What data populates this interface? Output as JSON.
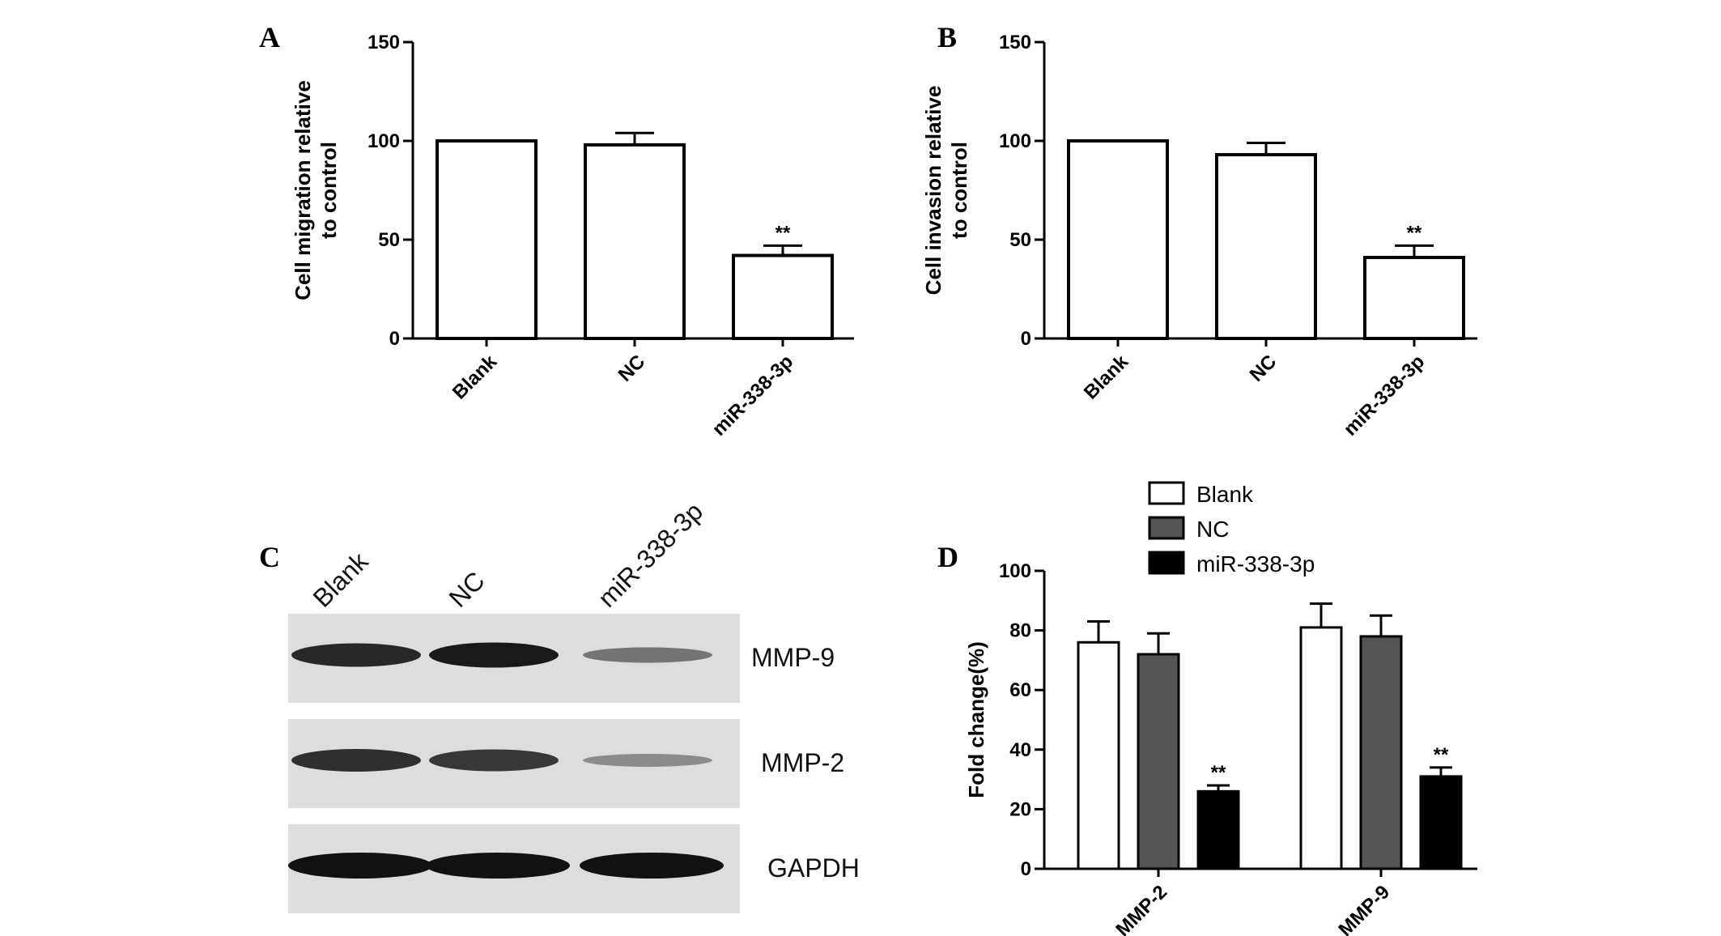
{
  "colors": {
    "axis": "#000000",
    "blank_fill": "#ffffff",
    "nc_fill": "#555555",
    "mir_fill": "#000000",
    "blot_bg": "#dddddd",
    "band": "#111111"
  },
  "panels": {
    "A": {
      "letter": "A"
    },
    "B": {
      "letter": "B"
    },
    "C": {
      "letter": "C"
    },
    "D": {
      "letter": "D"
    }
  },
  "blot": {
    "lanes": [
      "Blank",
      "NC",
      "miR-338-3p"
    ],
    "rows": [
      {
        "label": "MMP-9",
        "band_intensity": [
          0.85,
          0.95,
          0.35
        ]
      },
      {
        "label": "MMP-2",
        "band_intensity": [
          0.8,
          0.75,
          0.2
        ]
      },
      {
        "label": "GAPDH",
        "band_intensity": [
          1.0,
          1.0,
          1.0
        ]
      }
    ]
  },
  "chart_data": [
    {
      "id": "A",
      "type": "bar",
      "ylabel_line1": "Cell migration relative",
      "ylabel_line2": "to control",
      "categories": [
        "Blank",
        "NC",
        "miR-338-3p"
      ],
      "values": [
        100,
        98,
        42
      ],
      "errors": [
        0,
        6,
        5
      ],
      "annotations": [
        "",
        "",
        "**"
      ],
      "ylim": [
        0,
        150
      ],
      "yticks": [
        0,
        50,
        100,
        150
      ],
      "grid": false
    },
    {
      "id": "B",
      "type": "bar",
      "ylabel_line1": "Cell invasion relative",
      "ylabel_line2": "to control",
      "categories": [
        "Blank",
        "NC",
        "miR-338-3p"
      ],
      "values": [
        100,
        93,
        41
      ],
      "errors": [
        0,
        6,
        6
      ],
      "annotations": [
        "",
        "",
        "**"
      ],
      "ylim": [
        0,
        150
      ],
      "yticks": [
        0,
        50,
        100,
        150
      ],
      "grid": false
    },
    {
      "id": "D",
      "type": "bar",
      "ylabel": "Fold change(%)",
      "categories": [
        "MMP-2",
        "MMP-9"
      ],
      "series": [
        {
          "name": "Blank",
          "values": [
            76,
            81
          ],
          "errors": [
            7,
            8
          ],
          "annotations": [
            "",
            ""
          ]
        },
        {
          "name": "NC",
          "values": [
            72,
            78
          ],
          "errors": [
            7,
            7
          ],
          "annotations": [
            "",
            ""
          ]
        },
        {
          "name": "miR-338-3p",
          "values": [
            26,
            31
          ],
          "errors": [
            2,
            3
          ],
          "annotations": [
            "**",
            "**"
          ]
        }
      ],
      "ylim": [
        0,
        100
      ],
      "yticks": [
        0,
        20,
        40,
        60,
        80,
        100
      ],
      "legend_position": "top",
      "grid": false
    }
  ]
}
